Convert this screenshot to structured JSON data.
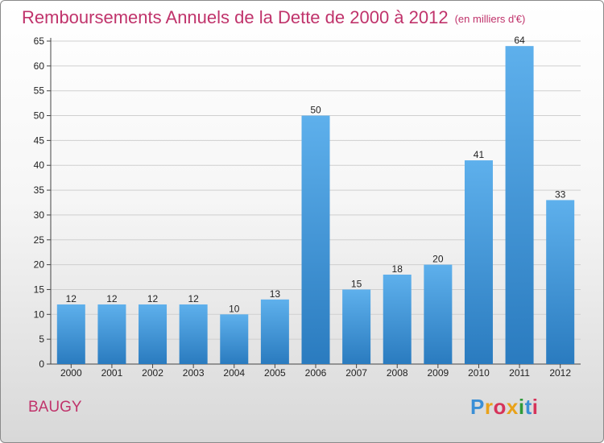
{
  "title": "Remboursements Annuels de la Dette de 2000 à 2012",
  "subtitle": "(en milliers d'€)",
  "place": "BAUGY",
  "brand": {
    "text": "Proxiti",
    "letters": [
      {
        "ch": "P",
        "color": "#3a8fd6"
      },
      {
        "ch": "r",
        "color": "#e9a21a"
      },
      {
        "ch": "o",
        "color": "#d6335a"
      },
      {
        "ch": "x",
        "color": "#e9a21a"
      },
      {
        "ch": "i",
        "color": "#2f9a3a"
      },
      {
        "ch": "t",
        "color": "#3a8fd6"
      },
      {
        "ch": "i",
        "color": "#d6335a"
      }
    ]
  },
  "colors": {
    "bar_light": "#5eb0ec",
    "bar_dark": "#2a7bbf",
    "title": "#c0336b"
  },
  "chart_data": {
    "type": "bar",
    "categories": [
      "2000",
      "2001",
      "2002",
      "2003",
      "2004",
      "2005",
      "2006",
      "2007",
      "2008",
      "2009",
      "2010",
      "2011",
      "2012"
    ],
    "values": [
      12,
      12,
      12,
      12,
      10,
      13,
      50,
      15,
      18,
      20,
      41,
      64,
      33
    ],
    "ylim": [
      0,
      65
    ],
    "yticks": [
      0,
      5,
      10,
      15,
      20,
      25,
      30,
      35,
      40,
      45,
      50,
      55,
      60,
      65
    ],
    "grid": "y",
    "xlabel": "",
    "ylabel": ""
  }
}
